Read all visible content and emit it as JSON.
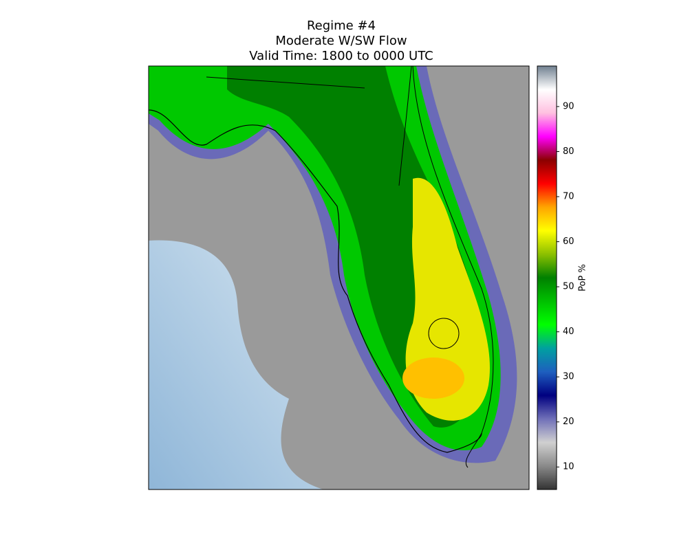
{
  "title": [
    "Regime #4",
    "Moderate W/SW Flow",
    "Valid Time: 1800 to 0000 UTC"
  ],
  "colorbar": {
    "label": "PoP %",
    "lim": [
      5,
      99
    ],
    "ticks": [
      10,
      20,
      30,
      40,
      50,
      60,
      70,
      80,
      90
    ],
    "colors": [
      "#333333",
      "#8a8a8a",
      "#d0d0d0",
      "#7070b8",
      "#000080",
      "#1e5fbf",
      "#00a0a0",
      "#00ff00",
      "#00c000",
      "#008000",
      "#8cc000",
      "#ffff00",
      "#ffa500",
      "#ff0000",
      "#8b0000",
      "#ff00ff",
      "#ffc0e0",
      "#ffffff",
      "#708090"
    ]
  }
}
